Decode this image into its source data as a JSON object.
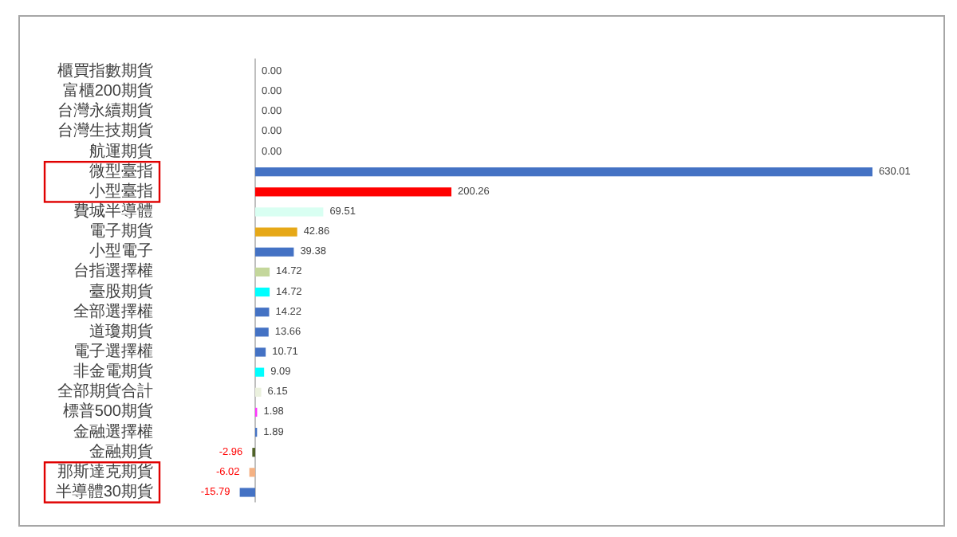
{
  "chart_data": {
    "type": "bar",
    "orientation": "horizontal",
    "categories": [
      "櫃買指數期貨",
      "富櫃200期貨",
      "台灣永續期貨",
      "台灣生技期貨",
      "航運期貨",
      "微型臺指",
      "小型臺指",
      "費城半導體",
      "電子期貨",
      "小型電子",
      "台指選擇權",
      "臺股期貨",
      "全部選擇權",
      "道瓊期貨",
      "電子選擇權",
      "非金電期貨",
      "全部期貨合計",
      "標普500期貨",
      "金融選擇權",
      "金融期貨",
      "那斯達克期貨",
      "半導體30期貨"
    ],
    "values": [
      0,
      0,
      0,
      0,
      0,
      630.01,
      200.26,
      69.51,
      42.86,
      39.38,
      14.72,
      14.72,
      14.22,
      13.66,
      10.71,
      9.09,
      6.15,
      1.98,
      1.89,
      -2.96,
      -6.02,
      -15.79
    ],
    "colors": [
      null,
      null,
      null,
      null,
      null,
      "#4472c4",
      "#ff0000",
      "#d9fff2",
      "#e6a817",
      "#4472c4",
      "#c4d79b",
      "#00ffff",
      "#4472c4",
      "#4472c4",
      "#4472c4",
      "#00ffff",
      "#ebf1de",
      "#ff33ff",
      "#4472c4",
      "#4f6228",
      "#f4b183",
      "#4472c4"
    ],
    "value_labels": [
      "0.00",
      "0.00",
      "0.00",
      "0.00",
      "0.00",
      "630.01",
      "200.26",
      "69.51",
      "42.86",
      "39.38",
      "14.72",
      "14.72",
      "14.22",
      "13.66",
      "10.71",
      "9.09",
      "6.15",
      "1.98",
      "1.89",
      "-2.96",
      "-6.02",
      "-15.79"
    ]
  }
}
